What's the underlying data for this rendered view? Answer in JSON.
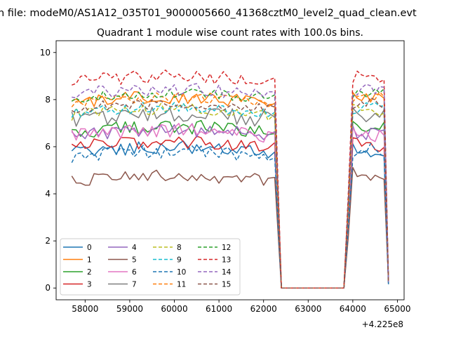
{
  "figure": {
    "suptitle": "n file: modeM0/AS1A12_035T01_9000005660_41368cztM0_level2_quad_clean.evt",
    "offset_label": "+4.225e8"
  },
  "chart_data": {
    "type": "line",
    "title": "Quadrant 1 module wise count rates with 100.0s bins.",
    "xlabel": "",
    "ylabel": "",
    "x_offset": 422500000,
    "xlim": [
      57350,
      65150
    ],
    "ylim": [
      -0.5,
      10.5
    ],
    "x_ticks": [
      58000,
      59000,
      60000,
      61000,
      62000,
      63000,
      64000,
      65000
    ],
    "y_ticks": [
      0,
      2,
      4,
      6,
      8,
      10
    ],
    "grid": false,
    "legend": {
      "position": "lower-left",
      "columns": 4
    },
    "segments": [
      {
        "x_start": 57700,
        "x_end": 62150,
        "step": 100
      },
      {
        "x_start": 63800,
        "x_end": 64800,
        "step": 100
      }
    ],
    "gap": {
      "x_drop": 62250,
      "x_zero_start": 62400,
      "x_zero_end": 63800
    },
    "series": [
      {
        "name": "0",
        "color": "#1f77b4",
        "dash": "solid",
        "level": 5.75,
        "amp": 0.3,
        "second_level": 5.85
      },
      {
        "name": "1",
        "color": "#ff7f0e",
        "dash": "solid",
        "level": 7.85,
        "amp": 0.28,
        "second_level": 8.05
      },
      {
        "name": "2",
        "color": "#2ca02c",
        "dash": "solid",
        "level": 6.6,
        "amp": 0.3,
        "second_level": 6.8
      },
      {
        "name": "3",
        "color": "#d62728",
        "dash": "solid",
        "level": 5.95,
        "amp": 0.3,
        "second_level": 6.1
      },
      {
        "name": "4",
        "color": "#9467bd",
        "dash": "solid",
        "level": 6.45,
        "amp": 0.3,
        "second_level": 6.6
      },
      {
        "name": "5",
        "color": "#8c564b",
        "dash": "solid",
        "level": 4.55,
        "amp": 0.28,
        "second_level": 4.85
      },
      {
        "name": "6",
        "color": "#e377c2",
        "dash": "solid",
        "level": 6.45,
        "amp": 0.3,
        "second_level": 6.5
      },
      {
        "name": "7",
        "color": "#7f7f7f",
        "dash": "solid",
        "level": 7.15,
        "amp": 0.35,
        "second_level": 7.3
      },
      {
        "name": "8",
        "color": "#bcbd22",
        "dash": "dashed",
        "level": 7.35,
        "amp": 0.25,
        "second_level": 7.55
      },
      {
        "name": "9",
        "color": "#17becf",
        "dash": "dashed",
        "level": 7.45,
        "amp": 0.25,
        "second_level": 7.65
      },
      {
        "name": "10",
        "color": "#1f77b4",
        "dash": "dashed",
        "level": 5.55,
        "amp": 0.3,
        "second_level": 5.85
      },
      {
        "name": "11",
        "color": "#ff7f0e",
        "dash": "dashed",
        "level": 7.85,
        "amp": 0.25,
        "second_level": 8.15
      },
      {
        "name": "12",
        "color": "#2ca02c",
        "dash": "dashed",
        "level": 8.05,
        "amp": 0.22,
        "second_level": 8.3
      },
      {
        "name": "13",
        "color": "#d62728",
        "dash": "dashed",
        "level": 8.75,
        "amp": 0.3,
        "second_level": 9.0
      },
      {
        "name": "14",
        "color": "#9467bd",
        "dash": "dashed",
        "level": 8.2,
        "amp": 0.28,
        "second_level": 8.45
      },
      {
        "name": "15",
        "color": "#8c564b",
        "dash": "dashed",
        "level": 7.6,
        "amp": 0.25,
        "second_level": 7.85
      }
    ]
  }
}
